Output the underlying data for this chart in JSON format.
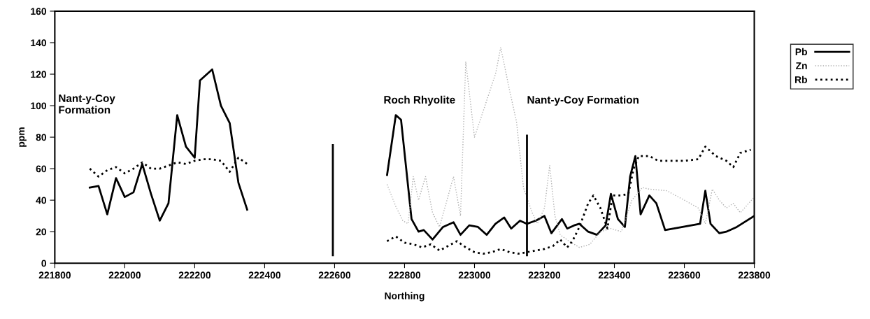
{
  "chart_data": {
    "type": "line",
    "xlabel": "Northing",
    "ylabel": "ppm",
    "xlim": [
      221800,
      223800
    ],
    "xticks": [
      221800,
      222000,
      222200,
      222400,
      222600,
      222800,
      223000,
      223200,
      223400,
      223600,
      223800
    ],
    "ylim": [
      0,
      160
    ],
    "yticks": [
      0,
      20,
      40,
      60,
      80,
      100,
      120,
      140,
      160
    ],
    "grid": false,
    "legend": "right",
    "marker": "none",
    "annotations": [
      "Nant-y-Coy\nFormation",
      "Roch Rhyolite",
      "Nant-y-Coy Formation"
    ],
    "series": [
      {
        "name": "Pb",
        "color": "#000000",
        "line_style": "solid",
        "x": [
          221900,
          221925,
          221950,
          221975,
          222000,
          222025,
          222050,
          222075,
          222100,
          222125,
          222150,
          222175,
          222200,
          222215,
          222250,
          222275,
          222300,
          222325,
          222350,
          222500,
          222750,
          222775,
          222790,
          222820,
          222840,
          222855,
          222880,
          222910,
          222940,
          222960,
          222985,
          223010,
          223035,
          223060,
          223085,
          223105,
          223130,
          223150,
          223175,
          223200,
          223220,
          223250,
          223265,
          223285,
          223300,
          223325,
          223350,
          223375,
          223390,
          223410,
          223430,
          223445,
          223460,
          223475,
          223500,
          223520,
          223545,
          223645,
          223660,
          223675,
          223700,
          223720,
          223750,
          223800
        ],
        "values": [
          48,
          49,
          31,
          54,
          42,
          45,
          63,
          44,
          27,
          38,
          94,
          74,
          67,
          116,
          123,
          100,
          89,
          51,
          34,
          null,
          56,
          94,
          91,
          28,
          20,
          21,
          15,
          23,
          26,
          18,
          24,
          23,
          18,
          25,
          29,
          22,
          27,
          25,
          27,
          30,
          19,
          28,
          22,
          24,
          25,
          20,
          18,
          24,
          44,
          28,
          23,
          55,
          68,
          31,
          43,
          38,
          21,
          25,
          46,
          25,
          19,
          20,
          23,
          30
        ]
      },
      {
        "name": "Zn",
        "color": "#b0b0b0",
        "line_style": "dotted",
        "x": [
          222750,
          222775,
          222795,
          222810,
          222825,
          222840,
          222860,
          222880,
          222900,
          222940,
          222960,
          222975,
          223000,
          223030,
          223060,
          223075,
          223100,
          223120,
          223140,
          223165,
          223180,
          223200,
          223215,
          223230,
          223245,
          223270,
          223300,
          223330,
          223360,
          223390,
          223420,
          223450,
          223480,
          223500,
          223550,
          223600,
          223640,
          223660,
          223680,
          223700,
          223720,
          223740,
          223760,
          223800
        ],
        "values": [
          50,
          36,
          27,
          25,
          55,
          40,
          55,
          32,
          23,
          55,
          30,
          128,
          80,
          100,
          120,
          137,
          110,
          90,
          48,
          32,
          25,
          35,
          62,
          30,
          18,
          14,
          10,
          12,
          20,
          22,
          20,
          40,
          48,
          47,
          46,
          40,
          35,
          25,
          47,
          40,
          35,
          38,
          32,
          42
        ]
      },
      {
        "name": "Rb",
        "color": "#000000",
        "line_style": "dotted",
        "x": [
          221900,
          221925,
          221950,
          221975,
          222000,
          222025,
          222050,
          222075,
          222100,
          222125,
          222150,
          222175,
          222200,
          222225,
          222250,
          222275,
          222300,
          222325,
          222350,
          222500,
          222750,
          222775,
          222800,
          222825,
          222850,
          222875,
          222900,
          222925,
          222950,
          222975,
          223000,
          223025,
          223050,
          223075,
          223100,
          223125,
          223150,
          223175,
          223200,
          223225,
          223245,
          223265,
          223280,
          223300,
          223325,
          223340,
          223360,
          223380,
          223395,
          223420,
          223440,
          223455,
          223470,
          223500,
          223525,
          223550,
          223600,
          223640,
          223660,
          223690,
          223720,
          223740,
          223760,
          223790
        ],
        "values": [
          60,
          55,
          59,
          61,
          57,
          60,
          64,
          60,
          60,
          62,
          64,
          63,
          65,
          66,
          66,
          65,
          58,
          67,
          63,
          null,
          14,
          17,
          13,
          12,
          10,
          12,
          8,
          11,
          14,
          10,
          7,
          6,
          7,
          9,
          7,
          6,
          7,
          8,
          9,
          11,
          15,
          10,
          14,
          23,
          38,
          43,
          35,
          22,
          43,
          43,
          44,
          60,
          68,
          68,
          65,
          65,
          65,
          66,
          74,
          68,
          65,
          61,
          70,
          72
        ]
      },
      {
        "color": "#000000",
        "line_style": "solid",
        "x": [
          222595,
          222595
        ],
        "values": [
          5,
          75
        ]
      },
      {
        "color": "#000000",
        "line_style": "solid",
        "x": [
          223150,
          223150
        ],
        "values": [
          5,
          81
        ]
      }
    ]
  }
}
